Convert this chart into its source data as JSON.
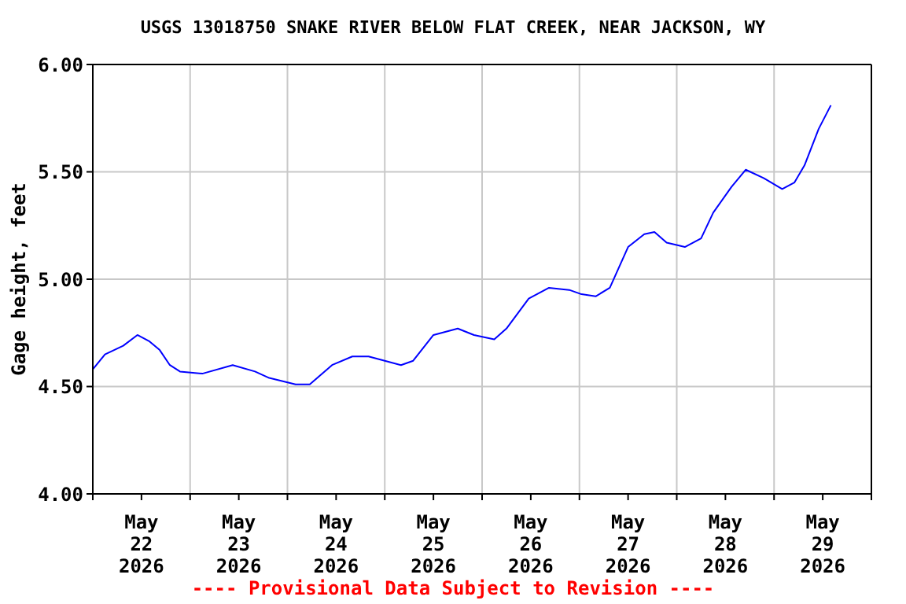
{
  "chart_data": {
    "type": "line",
    "title": "USGS 13018750 SNAKE RIVER BELOW FLAT CREEK, NEAR JACKSON, WY",
    "ylabel": "Gage height, feet",
    "annotations": [
      "---- Provisional Data Subject to Revision ----"
    ],
    "x": [
      "2026-05-22T00:00",
      "2026-05-22T03:00",
      "2026-05-22T07:30",
      "2026-05-22T11:00",
      "2026-05-22T14:00",
      "2026-05-22T16:30",
      "2026-05-22T19:00",
      "2026-05-22T21:30",
      "2026-05-23T03:00",
      "2026-05-23T10:30",
      "2026-05-23T16:00",
      "2026-05-23T19:30",
      "2026-05-24T02:00",
      "2026-05-24T05:30",
      "2026-05-24T11:00",
      "2026-05-24T16:00",
      "2026-05-24T20:00",
      "2026-05-25T00:00",
      "2026-05-25T04:00",
      "2026-05-25T07:00",
      "2026-05-25T12:00",
      "2026-05-25T18:00",
      "2026-05-25T22:00",
      "2026-05-26T03:00",
      "2026-05-26T06:00",
      "2026-05-26T11:30",
      "2026-05-26T16:30",
      "2026-05-26T21:30",
      "2026-05-27T00:30",
      "2026-05-27T04:00",
      "2026-05-27T07:30",
      "2026-05-27T12:00",
      "2026-05-27T16:00",
      "2026-05-27T18:30",
      "2026-05-27T21:30",
      "2026-05-28T02:00",
      "2026-05-28T06:00",
      "2026-05-28T09:00",
      "2026-05-28T13:30",
      "2026-05-28T17:00",
      "2026-05-28T21:30",
      "2026-05-29T02:00",
      "2026-05-29T05:00",
      "2026-05-29T07:30",
      "2026-05-29T11:00",
      "2026-05-29T14:00"
    ],
    "series": [
      {
        "color": "#0000ff",
        "values": [
          4.58,
          4.65,
          4.69,
          4.74,
          4.71,
          4.67,
          4.6,
          4.57,
          4.56,
          4.6,
          4.57,
          4.54,
          4.51,
          4.51,
          4.6,
          4.64,
          4.64,
          4.62,
          4.6,
          4.62,
          4.74,
          4.77,
          4.74,
          4.72,
          4.77,
          4.91,
          4.96,
          4.95,
          4.93,
          4.92,
          4.96,
          5.15,
          5.21,
          5.22,
          5.17,
          5.15,
          5.19,
          5.31,
          5.43,
          5.51,
          5.47,
          5.42,
          5.45,
          5.53,
          5.7,
          5.81
        ]
      }
    ],
    "xlim": [
      "2026-05-22T00:00",
      "2026-05-30T00:00"
    ],
    "xticks": [
      {
        "value": "2026-05-22T00:00",
        "label": null
      },
      {
        "value": "2026-05-22T12:00",
        "label": "May 22 2026"
      },
      {
        "value": "2026-05-23T00:00",
        "label": null
      },
      {
        "value": "2026-05-23T12:00",
        "label": "May 23 2026"
      },
      {
        "value": "2026-05-24T00:00",
        "label": null
      },
      {
        "value": "2026-05-24T12:00",
        "label": "May 24 2026"
      },
      {
        "value": "2026-05-25T00:00",
        "label": null
      },
      {
        "value": "2026-05-25T12:00",
        "label": "May 25 2026"
      },
      {
        "value": "2026-05-26T00:00",
        "label": null
      },
      {
        "value": "2026-05-26T12:00",
        "label": "May 26 2026"
      },
      {
        "value": "2026-05-27T00:00",
        "label": null
      },
      {
        "value": "2026-05-27T12:00",
        "label": "May 27 2026"
      },
      {
        "value": "2026-05-28T00:00",
        "label": null
      },
      {
        "value": "2026-05-28T12:00",
        "label": "May 28 2026"
      },
      {
        "value": "2026-05-29T00:00",
        "label": null
      },
      {
        "value": "2026-05-29T12:00",
        "label": "May 29 2026"
      },
      {
        "value": "2026-05-30T00:00",
        "label": null
      }
    ],
    "ylim": [
      4,
      6
    ],
    "yticks": [
      {
        "value": 4,
        "label": "4.00"
      },
      {
        "value": 4.5,
        "label": "4.50"
      },
      {
        "value": 5,
        "label": "5.00"
      },
      {
        "value": 5.5,
        "label": "5.50"
      },
      {
        "value": 6,
        "label": "6.00"
      }
    ],
    "grid": true,
    "legend": false,
    "marker": "none",
    "line_style": "solid"
  }
}
